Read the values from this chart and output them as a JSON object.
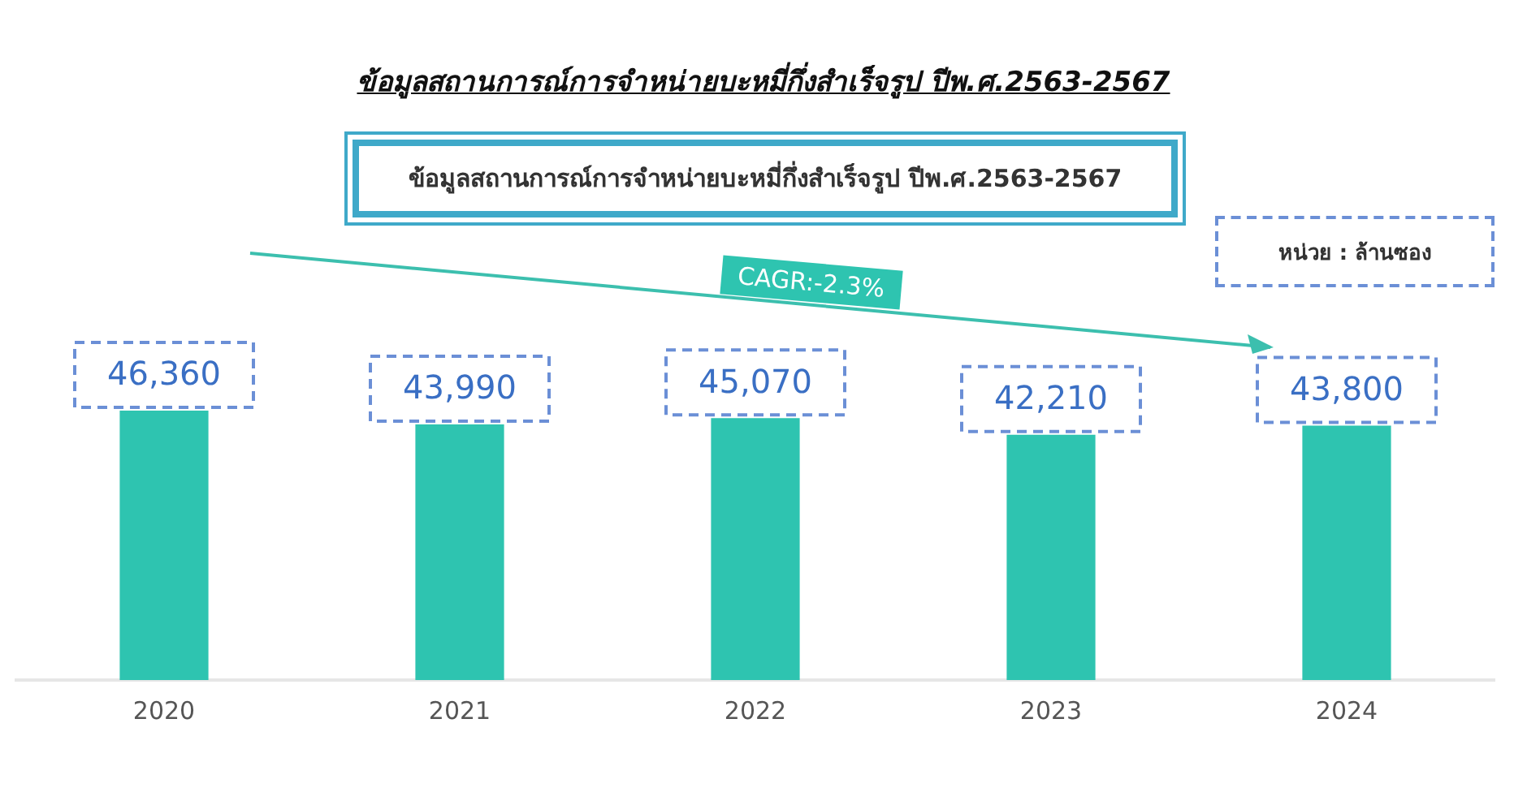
{
  "chart_data": {
    "type": "bar",
    "title": "ข้อมูลสถานการณ์การจำหน่ายบะหมี่กึ่งสำเร็จรูป ปีพ.ศ.2563-2567",
    "subtitle": "ข้อมูลสถานการณ์การจำหน่ายบะหมี่กึ่งสำเร็จรูป ปีพ.ศ.2563-2567",
    "categories": [
      "2020",
      "2021",
      "2022",
      "2023",
      "2024"
    ],
    "values": [
      46360,
      43990,
      45070,
      42210,
      43800
    ],
    "value_labels": [
      "46,360",
      "43,990",
      "45,070",
      "42,210",
      "43,800"
    ],
    "color": "#2ec4b0",
    "tick_labels": "x",
    "annotations": [
      "CAGR:-2.3%",
      "หน่วย : ล้านซอง"
    ]
  }
}
